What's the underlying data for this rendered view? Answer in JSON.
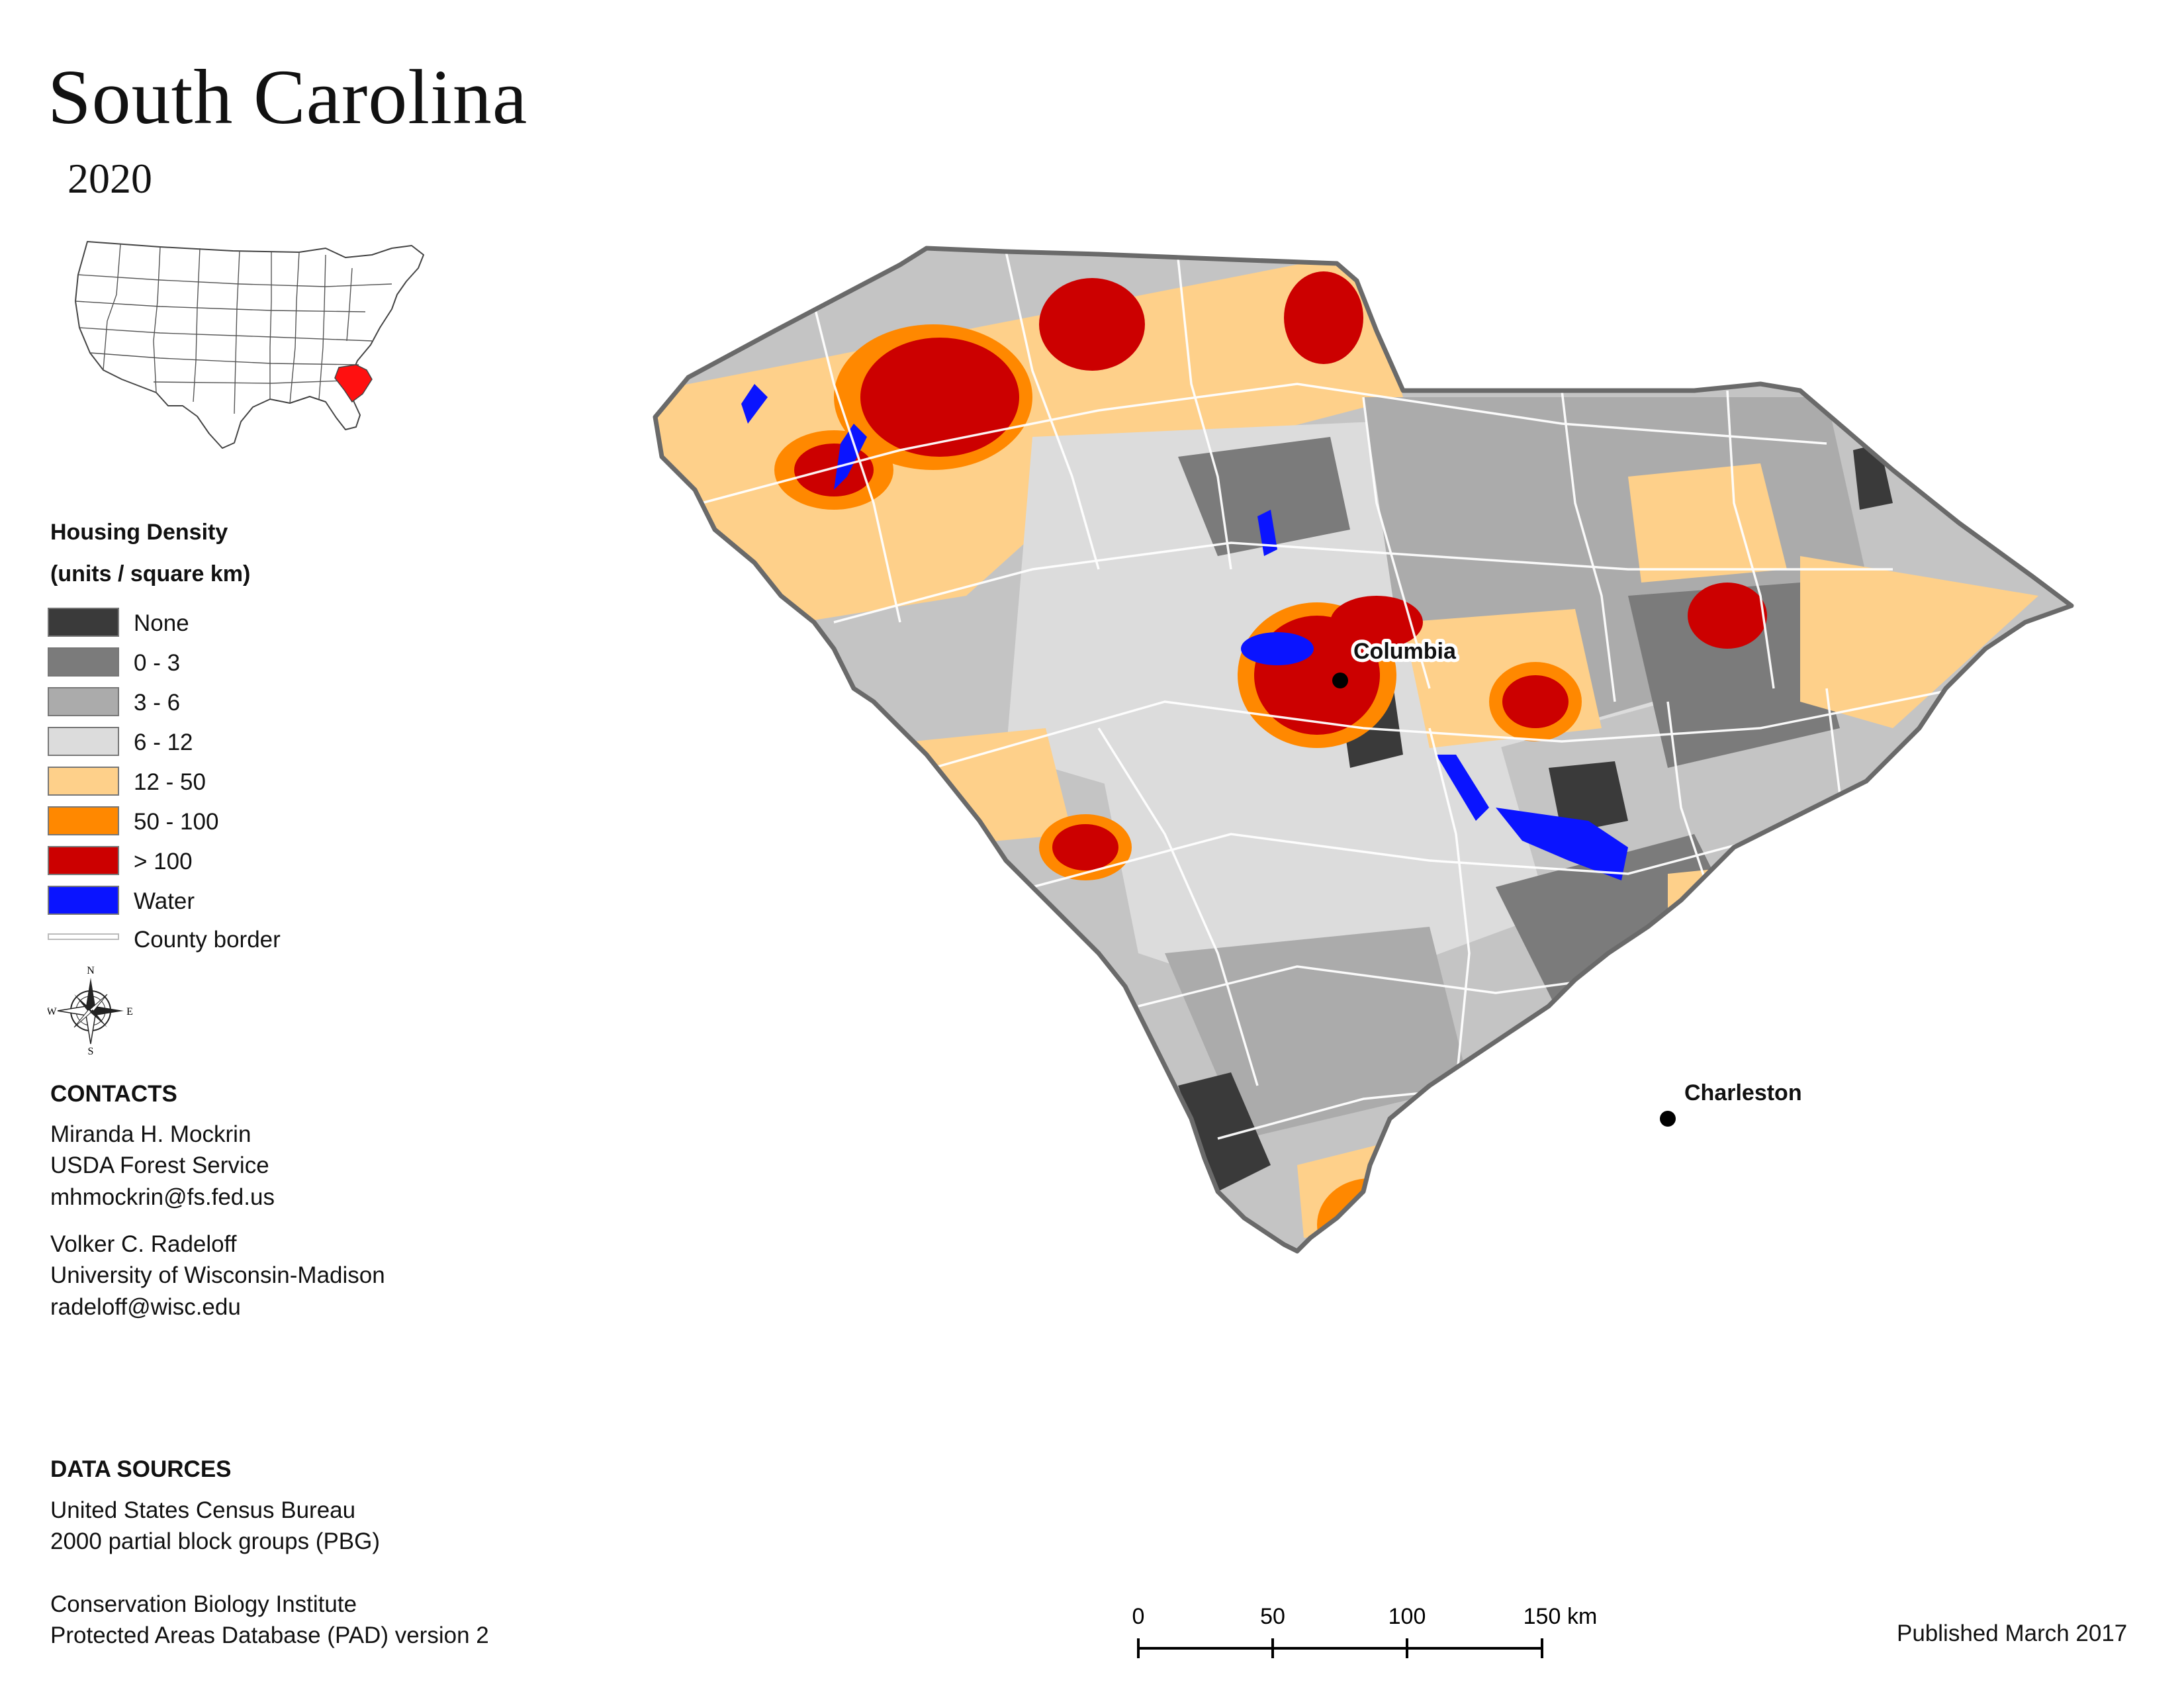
{
  "title": "South Carolina",
  "subtitle": "2020",
  "inset": {
    "highlight_color": "#ff1010"
  },
  "legend": {
    "title_line1": "Housing Density",
    "title_line2": "(units / square km)",
    "items": [
      {
        "label": "None",
        "color": "#3a3a3a"
      },
      {
        "label": "0 - 3",
        "color": "#7b7b7b"
      },
      {
        "label": "3 - 6",
        "color": "#ababab"
      },
      {
        "label": "6 - 12",
        "color": "#dcdcdc"
      },
      {
        "label": "12 - 50",
        "color": "#fed08a"
      },
      {
        "label": "50 - 100",
        "color": "#ff8800"
      },
      {
        "label": "> 100",
        "color": "#cc0000"
      },
      {
        "label": "Water",
        "color": "#0a14ff"
      }
    ],
    "border_label": "County border"
  },
  "compass": {
    "n": "N",
    "s": "S",
    "e": "E",
    "w": "W"
  },
  "contacts": {
    "heading": "CONTACTS",
    "person1": {
      "name": "Miranda H. Mockrin",
      "org": "USDA Forest Service",
      "email": "mhmockrin@fs.fed.us"
    },
    "person2": {
      "name": "Volker C. Radeloff",
      "org": "University of Wisconsin-Madison",
      "email": "radeloff@wisc.edu"
    }
  },
  "data_sources": {
    "heading": "DATA SOURCES",
    "source1_line1": "United States Census Bureau",
    "source1_line2": "2000 partial block groups (PBG)",
    "source2_line1": "Conservation Biology Institute",
    "source2_line2": "Protected Areas Database (PAD) version 2"
  },
  "cities": [
    {
      "name": "Columbia"
    },
    {
      "name": "Charleston"
    }
  ],
  "scale_bar": {
    "ticks": [
      "0",
      "50",
      "100",
      "150"
    ],
    "unit": "km"
  },
  "published": "Published March 2017"
}
